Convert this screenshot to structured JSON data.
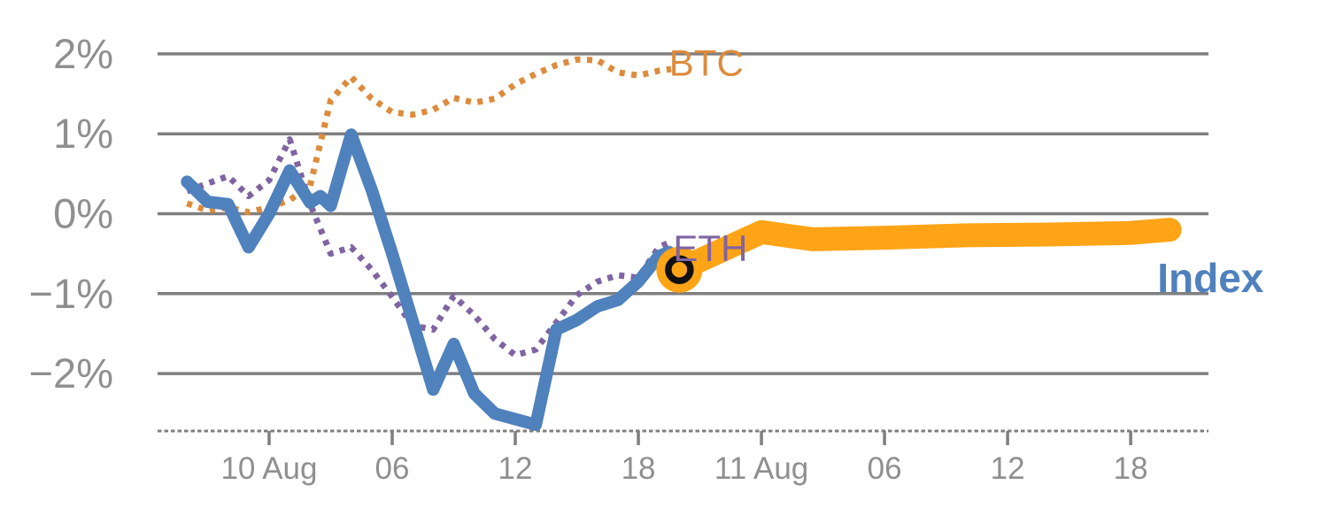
{
  "chart_data": {
    "type": "line",
    "title": "",
    "description": "Crypto 24h performance chart: BTC and ETH dotted history, Index solid history, thick highlighted Index continuation, black ring marker at period boundary",
    "colors": {
      "btc": "#DD8B3D",
      "eth": "#8064A2",
      "index": "#4F81BD",
      "index_current": "#FFA416",
      "grid": "#7f7f7f",
      "axis_text": "#8f8f8f",
      "marker_ring": "#111111",
      "background": "#ffffff"
    },
    "y_axis": {
      "unit": "%",
      "range": [
        -3.0,
        2.3
      ],
      "grid": true,
      "ticks": [
        {
          "value": 2,
          "label": "2%"
        },
        {
          "value": 1,
          "label": "1%"
        },
        {
          "value": 0,
          "label": "0%"
        },
        {
          "value": -1,
          "label": "−1%"
        },
        {
          "value": -2,
          "label": "−2%"
        }
      ]
    },
    "x_axis": {
      "unit": "hours from 20:00 9 Aug",
      "style": "dashed-baseline",
      "ticks": [
        {
          "hour": 4,
          "label": "10 Aug"
        },
        {
          "hour": 10,
          "label": "06"
        },
        {
          "hour": 16,
          "label": "12"
        },
        {
          "hour": 22,
          "label": "18"
        },
        {
          "hour": 28,
          "label": "11 Aug"
        },
        {
          "hour": 34,
          "label": "06"
        },
        {
          "hour": 40,
          "label": "12"
        },
        {
          "hour": 46,
          "label": "18"
        }
      ]
    },
    "series": [
      {
        "name": "BTC",
        "style": "dotted",
        "color_key": "btc",
        "points": [
          [
            0,
            0.13
          ],
          [
            1,
            0.04
          ],
          [
            2,
            0.08
          ],
          [
            3,
            0.02
          ],
          [
            4,
            0.08
          ],
          [
            5,
            0.17
          ],
          [
            6,
            0.35
          ],
          [
            7,
            1.42
          ],
          [
            8,
            1.71
          ],
          [
            9,
            1.44
          ],
          [
            10,
            1.27
          ],
          [
            11,
            1.24
          ],
          [
            12,
            1.3
          ],
          [
            13,
            1.45
          ],
          [
            14,
            1.39
          ],
          [
            15,
            1.44
          ],
          [
            16,
            1.62
          ],
          [
            17,
            1.75
          ],
          [
            18,
            1.86
          ],
          [
            19,
            1.93
          ],
          [
            20,
            1.92
          ],
          [
            21,
            1.77
          ],
          [
            22,
            1.73
          ],
          [
            23,
            1.79
          ],
          [
            23.6,
            1.81
          ]
        ]
      },
      {
        "name": "ETH",
        "style": "dotted",
        "color_key": "eth",
        "points": [
          [
            0,
            0.28
          ],
          [
            1,
            0.38
          ],
          [
            2,
            0.47
          ],
          [
            3,
            0.22
          ],
          [
            4,
            0.42
          ],
          [
            5,
            0.93
          ],
          [
            6,
            0.12
          ],
          [
            7,
            -0.5
          ],
          [
            8,
            -0.42
          ],
          [
            9,
            -0.7
          ],
          [
            10,
            -1.04
          ],
          [
            11,
            -1.4
          ],
          [
            12,
            -1.45
          ],
          [
            13,
            -1.03
          ],
          [
            14,
            -1.27
          ],
          [
            15,
            -1.57
          ],
          [
            16,
            -1.77
          ],
          [
            17,
            -1.7
          ],
          [
            18,
            -1.36
          ],
          [
            19,
            -1.02
          ],
          [
            20,
            -0.85
          ],
          [
            21,
            -0.77
          ],
          [
            22,
            -0.8
          ],
          [
            23,
            -0.42
          ],
          [
            23.5,
            -0.36
          ]
        ]
      },
      {
        "name": "Index",
        "style": "solid",
        "color_key": "index",
        "points": [
          [
            0,
            0.4
          ],
          [
            1,
            0.15
          ],
          [
            2,
            0.12
          ],
          [
            3,
            -0.42
          ],
          [
            4,
            0.0
          ],
          [
            5,
            0.54
          ],
          [
            6,
            0.14
          ],
          [
            6.5,
            0.22
          ],
          [
            7,
            0.1
          ],
          [
            8,
            0.99
          ],
          [
            9,
            0.3
          ],
          [
            10,
            -0.5
          ],
          [
            11,
            -1.35
          ],
          [
            12,
            -2.2
          ],
          [
            13,
            -1.63
          ],
          [
            14,
            -2.25
          ],
          [
            15,
            -2.5
          ],
          [
            16,
            -2.57
          ],
          [
            17,
            -2.64
          ],
          [
            18,
            -1.45
          ],
          [
            19,
            -1.33
          ],
          [
            20,
            -1.16
          ],
          [
            21,
            -1.08
          ],
          [
            22,
            -0.85
          ],
          [
            23,
            -0.53
          ],
          [
            23.5,
            -0.48
          ],
          [
            24,
            -0.68
          ]
        ]
      },
      {
        "name": "Index current period",
        "style": "solid-thick",
        "color_key": "index_current",
        "points": [
          [
            24,
            -0.7
          ],
          [
            28,
            -0.23
          ],
          [
            30.5,
            -0.32
          ],
          [
            34,
            -0.3
          ],
          [
            38,
            -0.27
          ],
          [
            42,
            -0.26
          ],
          [
            46,
            -0.24
          ],
          [
            47.9,
            -0.2
          ]
        ]
      }
    ],
    "marker": {
      "name": "period-boundary",
      "hour": 24,
      "value": -0.7,
      "shape": "black-ring-on-orange"
    },
    "labels": [
      {
        "text": "BTC",
        "hour": 23.5,
        "value": 1.73,
        "color_key": "btc",
        "size": 42,
        "bold": false
      },
      {
        "text": "ETH",
        "hour": 23.7,
        "value": -0.59,
        "color_key": "eth",
        "size": 42,
        "bold": false
      },
      {
        "text": "Index",
        "hour": 47.3,
        "value": -0.98,
        "color_key": "index",
        "size": 46,
        "bold": true
      }
    ]
  }
}
